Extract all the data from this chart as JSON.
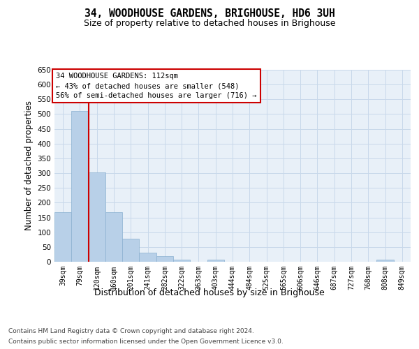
{
  "title": "34, WOODHOUSE GARDENS, BRIGHOUSE, HD6 3UH",
  "subtitle": "Size of property relative to detached houses in Brighouse",
  "xlabel": "Distribution of detached houses by size in Brighouse",
  "ylabel": "Number of detached properties",
  "bar_labels": [
    "39sqm",
    "79sqm",
    "120sqm",
    "160sqm",
    "201sqm",
    "241sqm",
    "282sqm",
    "322sqm",
    "363sqm",
    "403sqm",
    "444sqm",
    "484sqm",
    "525sqm",
    "565sqm",
    "606sqm",
    "646sqm",
    "687sqm",
    "727sqm",
    "768sqm",
    "808sqm",
    "849sqm"
  ],
  "bar_values": [
    168,
    510,
    302,
    168,
    78,
    31,
    20,
    7,
    0,
    8,
    0,
    0,
    0,
    0,
    0,
    0,
    0,
    0,
    0,
    7,
    0
  ],
  "bar_color": "#b8d0e8",
  "bar_edgecolor": "#8ab0d0",
  "grid_color": "#c8d8ea",
  "background_color": "#e8f0f8",
  "property_line_bar_index": 2,
  "annotation_text": "34 WOODHOUSE GARDENS: 112sqm\n← 43% of detached houses are smaller (548)\n56% of semi-detached houses are larger (716) →",
  "annotation_box_facecolor": "#ffffff",
  "annotation_box_edgecolor": "#cc0000",
  "red_line_color": "#cc0000",
  "ylim": [
    0,
    650
  ],
  "yticks": [
    0,
    50,
    100,
    150,
    200,
    250,
    300,
    350,
    400,
    450,
    500,
    550,
    600,
    650
  ],
  "footer_line1": "Contains HM Land Registry data © Crown copyright and database right 2024.",
  "footer_line2": "Contains public sector information licensed under the Open Government Licence v3.0."
}
